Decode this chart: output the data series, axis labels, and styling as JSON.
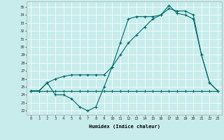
{
  "xlabel": "Humidex (Indice chaleur)",
  "background_color": "#c8ecec",
  "grid_color": "#ffffff",
  "line_color": "#006868",
  "xlim": [
    -0.5,
    23.5
  ],
  "ylim": [
    21.5,
    35.7
  ],
  "yticks": [
    22,
    23,
    24,
    25,
    26,
    27,
    28,
    29,
    30,
    31,
    32,
    33,
    34,
    35
  ],
  "xticks": [
    0,
    1,
    2,
    3,
    4,
    5,
    6,
    7,
    8,
    9,
    10,
    11,
    12,
    13,
    14,
    15,
    16,
    17,
    18,
    19,
    20,
    21,
    22,
    23
  ],
  "line1": [
    24.5,
    24.5,
    25.5,
    24.0,
    24.0,
    23.5,
    22.5,
    22.0,
    22.5,
    25.0,
    27.5,
    30.5,
    33.5,
    33.8,
    33.8,
    33.8,
    34.0,
    35.2,
    34.2,
    34.0,
    33.5,
    29.0,
    25.5,
    24.5
  ],
  "line2": [
    24.5,
    24.5,
    25.5,
    26.0,
    26.3,
    26.5,
    26.5,
    26.5,
    26.5,
    26.5,
    27.5,
    29.0,
    30.5,
    31.5,
    32.5,
    33.5,
    34.0,
    34.8,
    34.5,
    34.5,
    34.0,
    29.0,
    25.5,
    24.5
  ],
  "line3": [
    24.5,
    24.5,
    24.5,
    24.5,
    24.5,
    24.5,
    24.5,
    24.5,
    24.5,
    24.5,
    24.5,
    24.5,
    24.5,
    24.5,
    24.5,
    24.5,
    24.5,
    24.5,
    24.5,
    24.5,
    24.5,
    24.5,
    24.5,
    24.5
  ]
}
